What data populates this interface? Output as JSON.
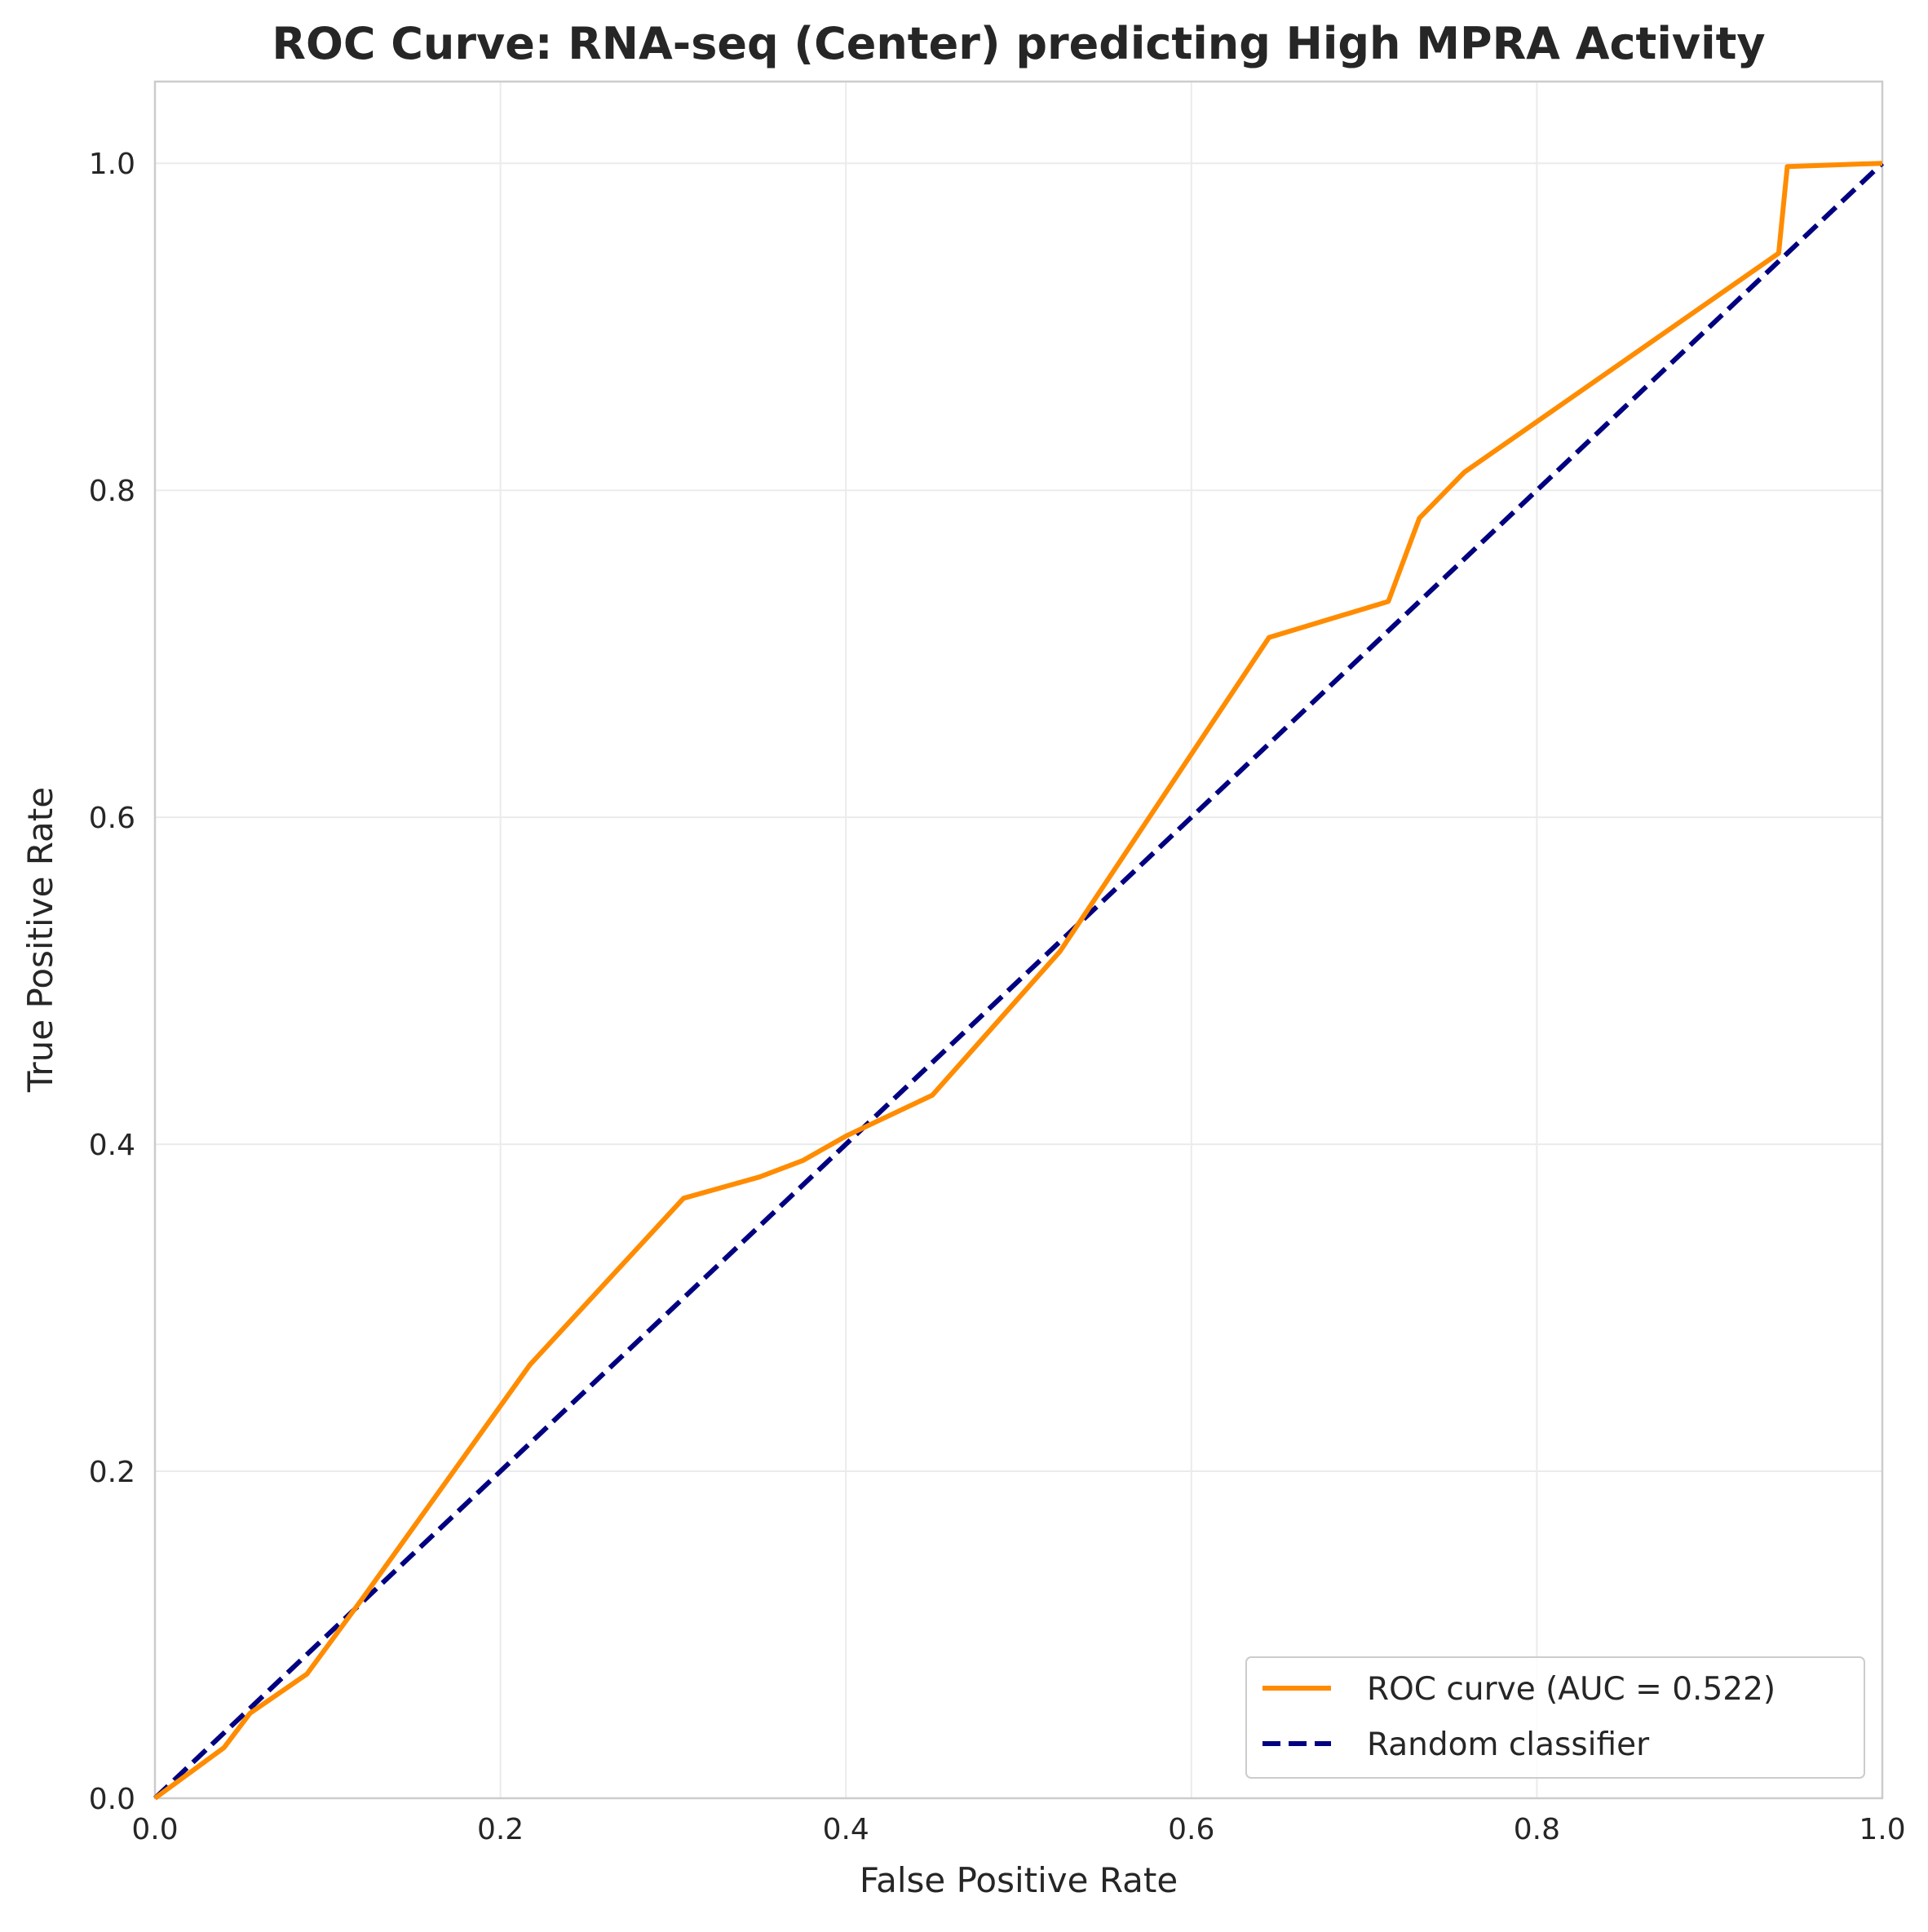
{
  "chart_data": {
    "type": "line",
    "title": "ROC Curve: RNA-seq (Center) predicting High MPRA Activity",
    "xlabel": "False Positive Rate",
    "ylabel": "True Positive Rate",
    "xlim": [
      0.0,
      1.0
    ],
    "ylim": [
      0.0,
      1.05
    ],
    "xticks": [
      "0.0",
      "0.2",
      "0.4",
      "0.6",
      "0.8",
      "1.0"
    ],
    "yticks": [
      "0.0",
      "0.2",
      "0.4",
      "0.6",
      "0.8",
      "1.0"
    ],
    "grid": true,
    "legend_position": "lower-right",
    "series": [
      {
        "name": "ROC curve (AUC = 0.522)",
        "color": "#ff8c00",
        "style": "solid",
        "x": [
          0.0,
          0.04,
          0.055,
          0.088,
          0.12,
          0.217,
          0.306,
          0.35,
          0.375,
          0.4,
          0.45,
          0.524,
          0.645,
          0.714,
          0.732,
          0.758,
          0.94,
          0.945,
          1.0
        ],
        "y": [
          0.0,
          0.031,
          0.052,
          0.076,
          0.122,
          0.265,
          0.367,
          0.38,
          0.39,
          0.405,
          0.43,
          0.518,
          0.71,
          0.732,
          0.783,
          0.811,
          0.945,
          0.998,
          1.0
        ]
      },
      {
        "name": "Random classifier",
        "color": "#000080",
        "style": "dashed",
        "x": [
          0.0,
          1.0
        ],
        "y": [
          0.0,
          1.0
        ]
      }
    ]
  }
}
